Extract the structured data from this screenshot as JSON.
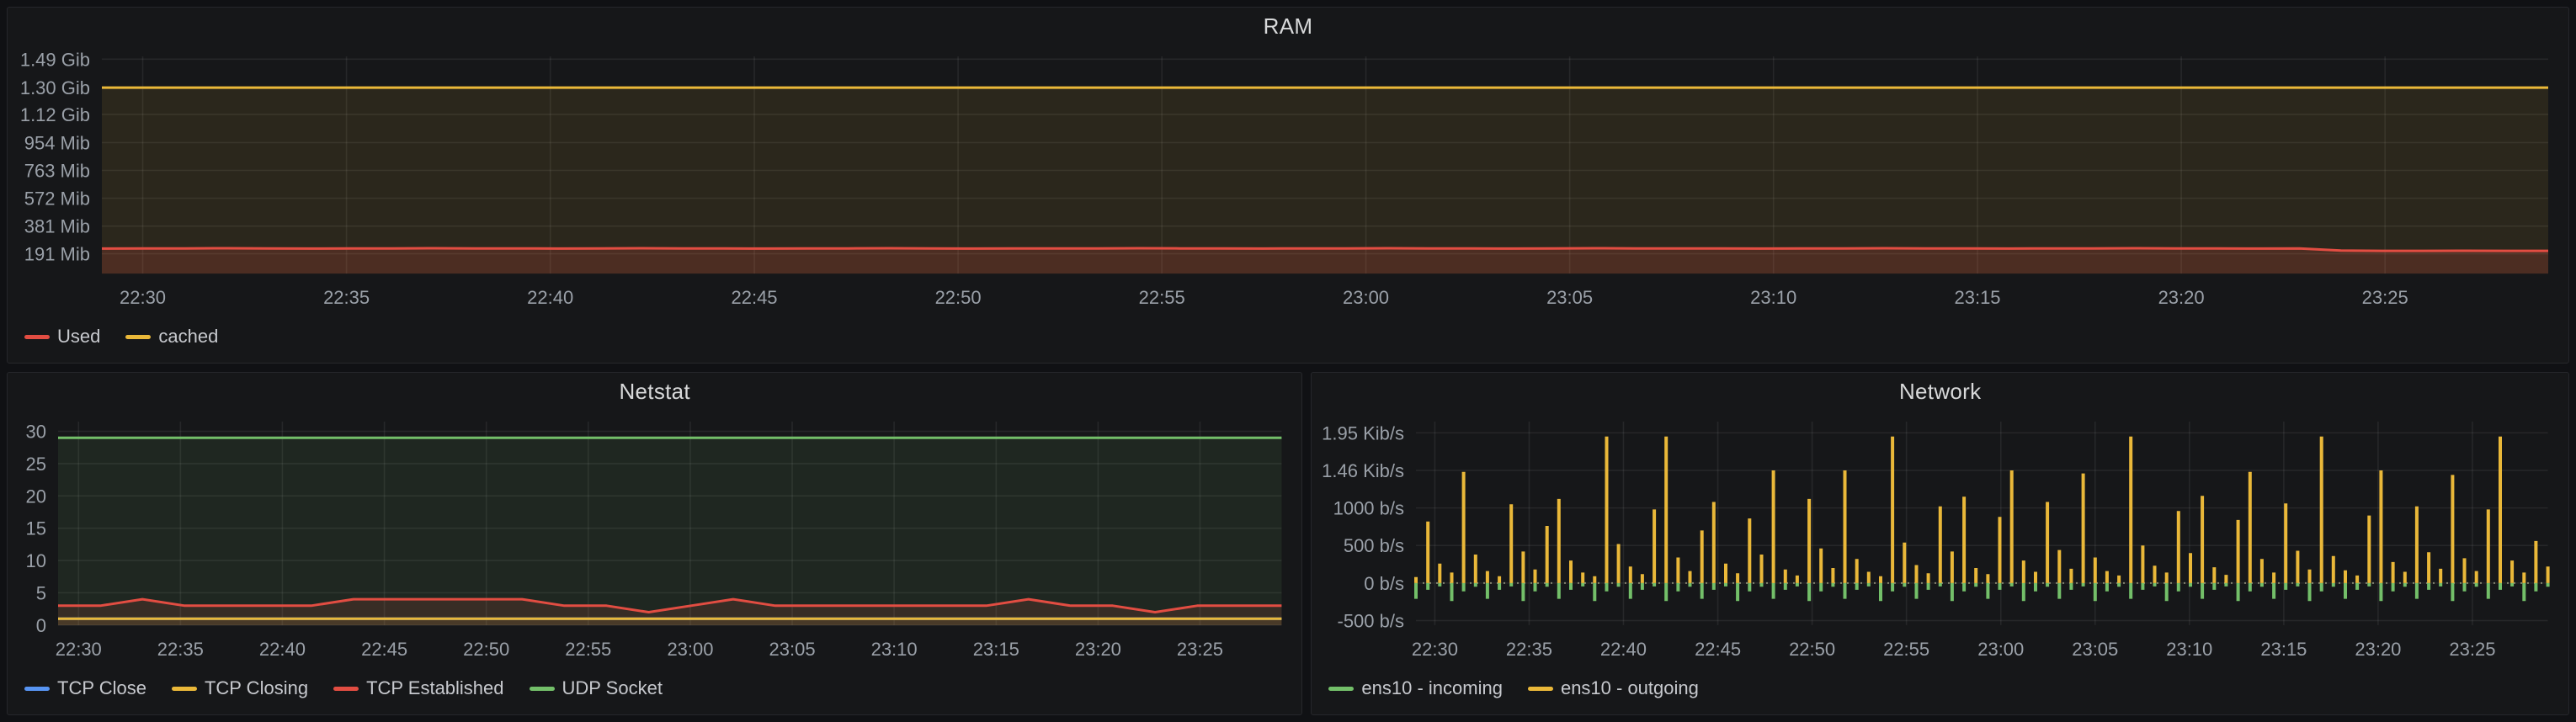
{
  "page": {
    "background": "#101114",
    "panel_background": "#161719"
  },
  "chart_data": [
    {
      "id": "ram",
      "type": "line",
      "title": "RAM",
      "ylim": [
        55,
        1545
      ],
      "unit": "Mib",
      "y_ticks": [
        {
          "v": 191,
          "label": "191 Mib"
        },
        {
          "v": 381,
          "label": "381 Mib"
        },
        {
          "v": 572,
          "label": "572 Mib"
        },
        {
          "v": 763,
          "label": "763 Mib"
        },
        {
          "v": 954,
          "label": "954 Mib"
        },
        {
          "v": 1147,
          "label": "1.12 Gib"
        },
        {
          "v": 1331,
          "label": "1.30 Gib"
        },
        {
          "v": 1526,
          "label": "1.49 Gib"
        }
      ],
      "x_ticks": {
        "labels": [
          "22:30",
          "22:35",
          "22:40",
          "22:45",
          "22:50",
          "22:55",
          "23:00",
          "23:05",
          "23:10",
          "23:15",
          "23:20",
          "23:25"
        ],
        "fracs": [
          0.0167,
          0.1,
          0.1833,
          0.2667,
          0.35,
          0.4333,
          0.5167,
          0.6,
          0.6833,
          0.7667,
          0.85,
          0.9333
        ]
      },
      "legend": [
        {
          "label": "Used",
          "color": "#e24d42"
        },
        {
          "label": "cached",
          "color": "#eab839"
        }
      ],
      "series": [
        {
          "name": "cached",
          "color": "#eab839",
          "mode": "line",
          "fill_opacity": 0.1,
          "values": [
            1331,
            1331
          ]
        },
        {
          "name": "Used",
          "color": "#e24d42",
          "mode": "line",
          "fill_opacity": 0.18,
          "values": [
            227,
            228,
            228,
            229,
            228,
            227,
            228,
            228,
            229,
            228,
            228,
            227,
            228,
            229,
            228,
            228,
            227,
            228,
            228,
            229,
            228,
            227,
            228,
            228,
            228,
            229,
            228,
            228,
            227,
            228,
            228,
            229,
            228,
            228,
            227,
            228,
            229,
            228,
            228,
            228,
            227,
            228,
            228,
            229,
            228,
            228,
            227,
            228,
            228,
            229,
            228,
            228,
            227,
            228,
            213,
            211,
            211,
            212,
            211,
            211
          ]
        }
      ]
    },
    {
      "id": "netstat",
      "type": "line",
      "title": "Netstat",
      "ylim": [
        0,
        31.5
      ],
      "unit": "sockets",
      "y_ticks": [
        {
          "v": 0,
          "label": "0"
        },
        {
          "v": 5,
          "label": "5"
        },
        {
          "v": 10,
          "label": "10"
        },
        {
          "v": 15,
          "label": "15"
        },
        {
          "v": 20,
          "label": "20"
        },
        {
          "v": 25,
          "label": "25"
        },
        {
          "v": 30,
          "label": "30"
        }
      ],
      "x_ticks": {
        "labels": [
          "22:30",
          "22:35",
          "22:40",
          "22:45",
          "22:50",
          "22:55",
          "23:00",
          "23:05",
          "23:10",
          "23:15",
          "23:20",
          "23:25"
        ],
        "fracs": [
          0.0167,
          0.1,
          0.1833,
          0.2667,
          0.35,
          0.4333,
          0.5167,
          0.6,
          0.6833,
          0.7667,
          0.85,
          0.9333
        ]
      },
      "legend": [
        {
          "label": "TCP Close",
          "color": "#5794f2"
        },
        {
          "label": "TCP Closing",
          "color": "#eab839"
        },
        {
          "label": "TCP Established",
          "color": "#e24d42"
        },
        {
          "label": "UDP Socket",
          "color": "#73bf69"
        }
      ],
      "series": [
        {
          "name": "TCP Close",
          "color": "#5794f2",
          "mode": "line",
          "fill_opacity": 0,
          "values": [
            1,
            1
          ]
        },
        {
          "name": "TCP Closing",
          "color": "#eab839",
          "mode": "line",
          "fill_opacity": 0.1,
          "values": [
            1,
            1
          ]
        },
        {
          "name": "TCP Established",
          "color": "#e24d42",
          "mode": "line",
          "fill_opacity": 0.14,
          "values": [
            3,
            3,
            4,
            3,
            3,
            3,
            3,
            4,
            4,
            4,
            4,
            4,
            3,
            3,
            2,
            3,
            4,
            3,
            3,
            3,
            3,
            3,
            3,
            4,
            3,
            3,
            2,
            3,
            3,
            3
          ]
        },
        {
          "name": "UDP Socket",
          "color": "#73bf69",
          "mode": "line",
          "fill_opacity": 0.1,
          "values": [
            29,
            29
          ]
        }
      ]
    },
    {
      "id": "network",
      "type": "bar",
      "title": "Network",
      "ylim": [
        -560,
        2150
      ],
      "unit": "b/s",
      "zero_line": true,
      "y_ticks": [
        {
          "v": -500,
          "label": "-500 b/s"
        },
        {
          "v": 0,
          "label": "0 b/s"
        },
        {
          "v": 500,
          "label": "500 b/s"
        },
        {
          "v": 1000,
          "label": "1000 b/s"
        },
        {
          "v": 1500,
          "label": "1.46 Kib/s"
        },
        {
          "v": 2000,
          "label": "1.95 Kib/s"
        }
      ],
      "x_ticks": {
        "labels": [
          "22:30",
          "22:35",
          "22:40",
          "22:45",
          "22:50",
          "22:55",
          "23:00",
          "23:05",
          "23:10",
          "23:15",
          "23:20",
          "23:25"
        ],
        "fracs": [
          0.0167,
          0.1,
          0.1833,
          0.2667,
          0.35,
          0.4333,
          0.5167,
          0.6,
          0.6833,
          0.7667,
          0.85,
          0.9333
        ]
      },
      "legend": [
        {
          "label": "ens10 - incoming",
          "color": "#73bf69"
        },
        {
          "label": "ens10 - outgoing",
          "color": "#eab839"
        }
      ],
      "series": [
        {
          "name": "ens10 - incoming",
          "color": "#73bf69",
          "mode": "bars",
          "fill_opacity": 0,
          "values": [
            -210,
            -90,
            -45,
            -240,
            -110,
            -50,
            -210,
            -90,
            -45,
            -240,
            -110,
            -50,
            -210,
            -90,
            -45,
            -240,
            -110,
            -50,
            -210,
            -90,
            -45,
            -240,
            -110,
            -50,
            -210,
            -90,
            -45,
            -240,
            -110,
            -50,
            -210,
            -90,
            -45,
            -240,
            -110,
            -50,
            -210,
            -90,
            -45,
            -240,
            -110,
            -50,
            -210,
            -90,
            -45,
            -240,
            -110,
            -50,
            -210,
            -90,
            -45,
            -240,
            -110,
            -50,
            -210,
            -90,
            -45,
            -240,
            -110,
            -50,
            -210,
            -90,
            -45,
            -240,
            -110,
            -50,
            -210,
            -90,
            -45,
            -240,
            -110,
            -50,
            -210,
            -90,
            -45,
            -240,
            -110,
            -50,
            -210,
            -90,
            -45,
            -240,
            -110,
            -50,
            -210,
            -90,
            -45,
            -240,
            -110,
            -50,
            -210,
            -90,
            -45,
            -240,
            -110,
            -50
          ]
        },
        {
          "name": "ens10 - outgoing",
          "color": "#eab839",
          "mode": "bars",
          "fill_opacity": 0,
          "values": [
            80,
            820,
            260,
            140,
            1480,
            380,
            160,
            90,
            1050,
            420,
            180,
            760,
            1120,
            300,
            140,
            90,
            1950,
            520,
            220,
            120,
            980,
            1950,
            340,
            160,
            700,
            1080,
            260,
            130,
            860,
            380,
            1500,
            180,
            100,
            1120,
            460,
            200,
            1500,
            320,
            150,
            90,
            1950,
            540,
            240,
            130,
            1020,
            420,
            1150,
            200,
            120,
            880,
            1500,
            300,
            150,
            1080,
            440,
            190,
            1460,
            340,
            160,
            100,
            1950,
            500,
            230,
            140,
            960,
            400,
            1160,
            210,
            110,
            840,
            1480,
            320,
            140,
            1060,
            430,
            180,
            1950,
            360,
            170,
            100,
            900,
            1500,
            280,
            150,
            1020,
            410,
            190,
            1440,
            330,
            160,
            980,
            1950,
            300,
            140,
            560,
            220
          ]
        }
      ]
    }
  ]
}
